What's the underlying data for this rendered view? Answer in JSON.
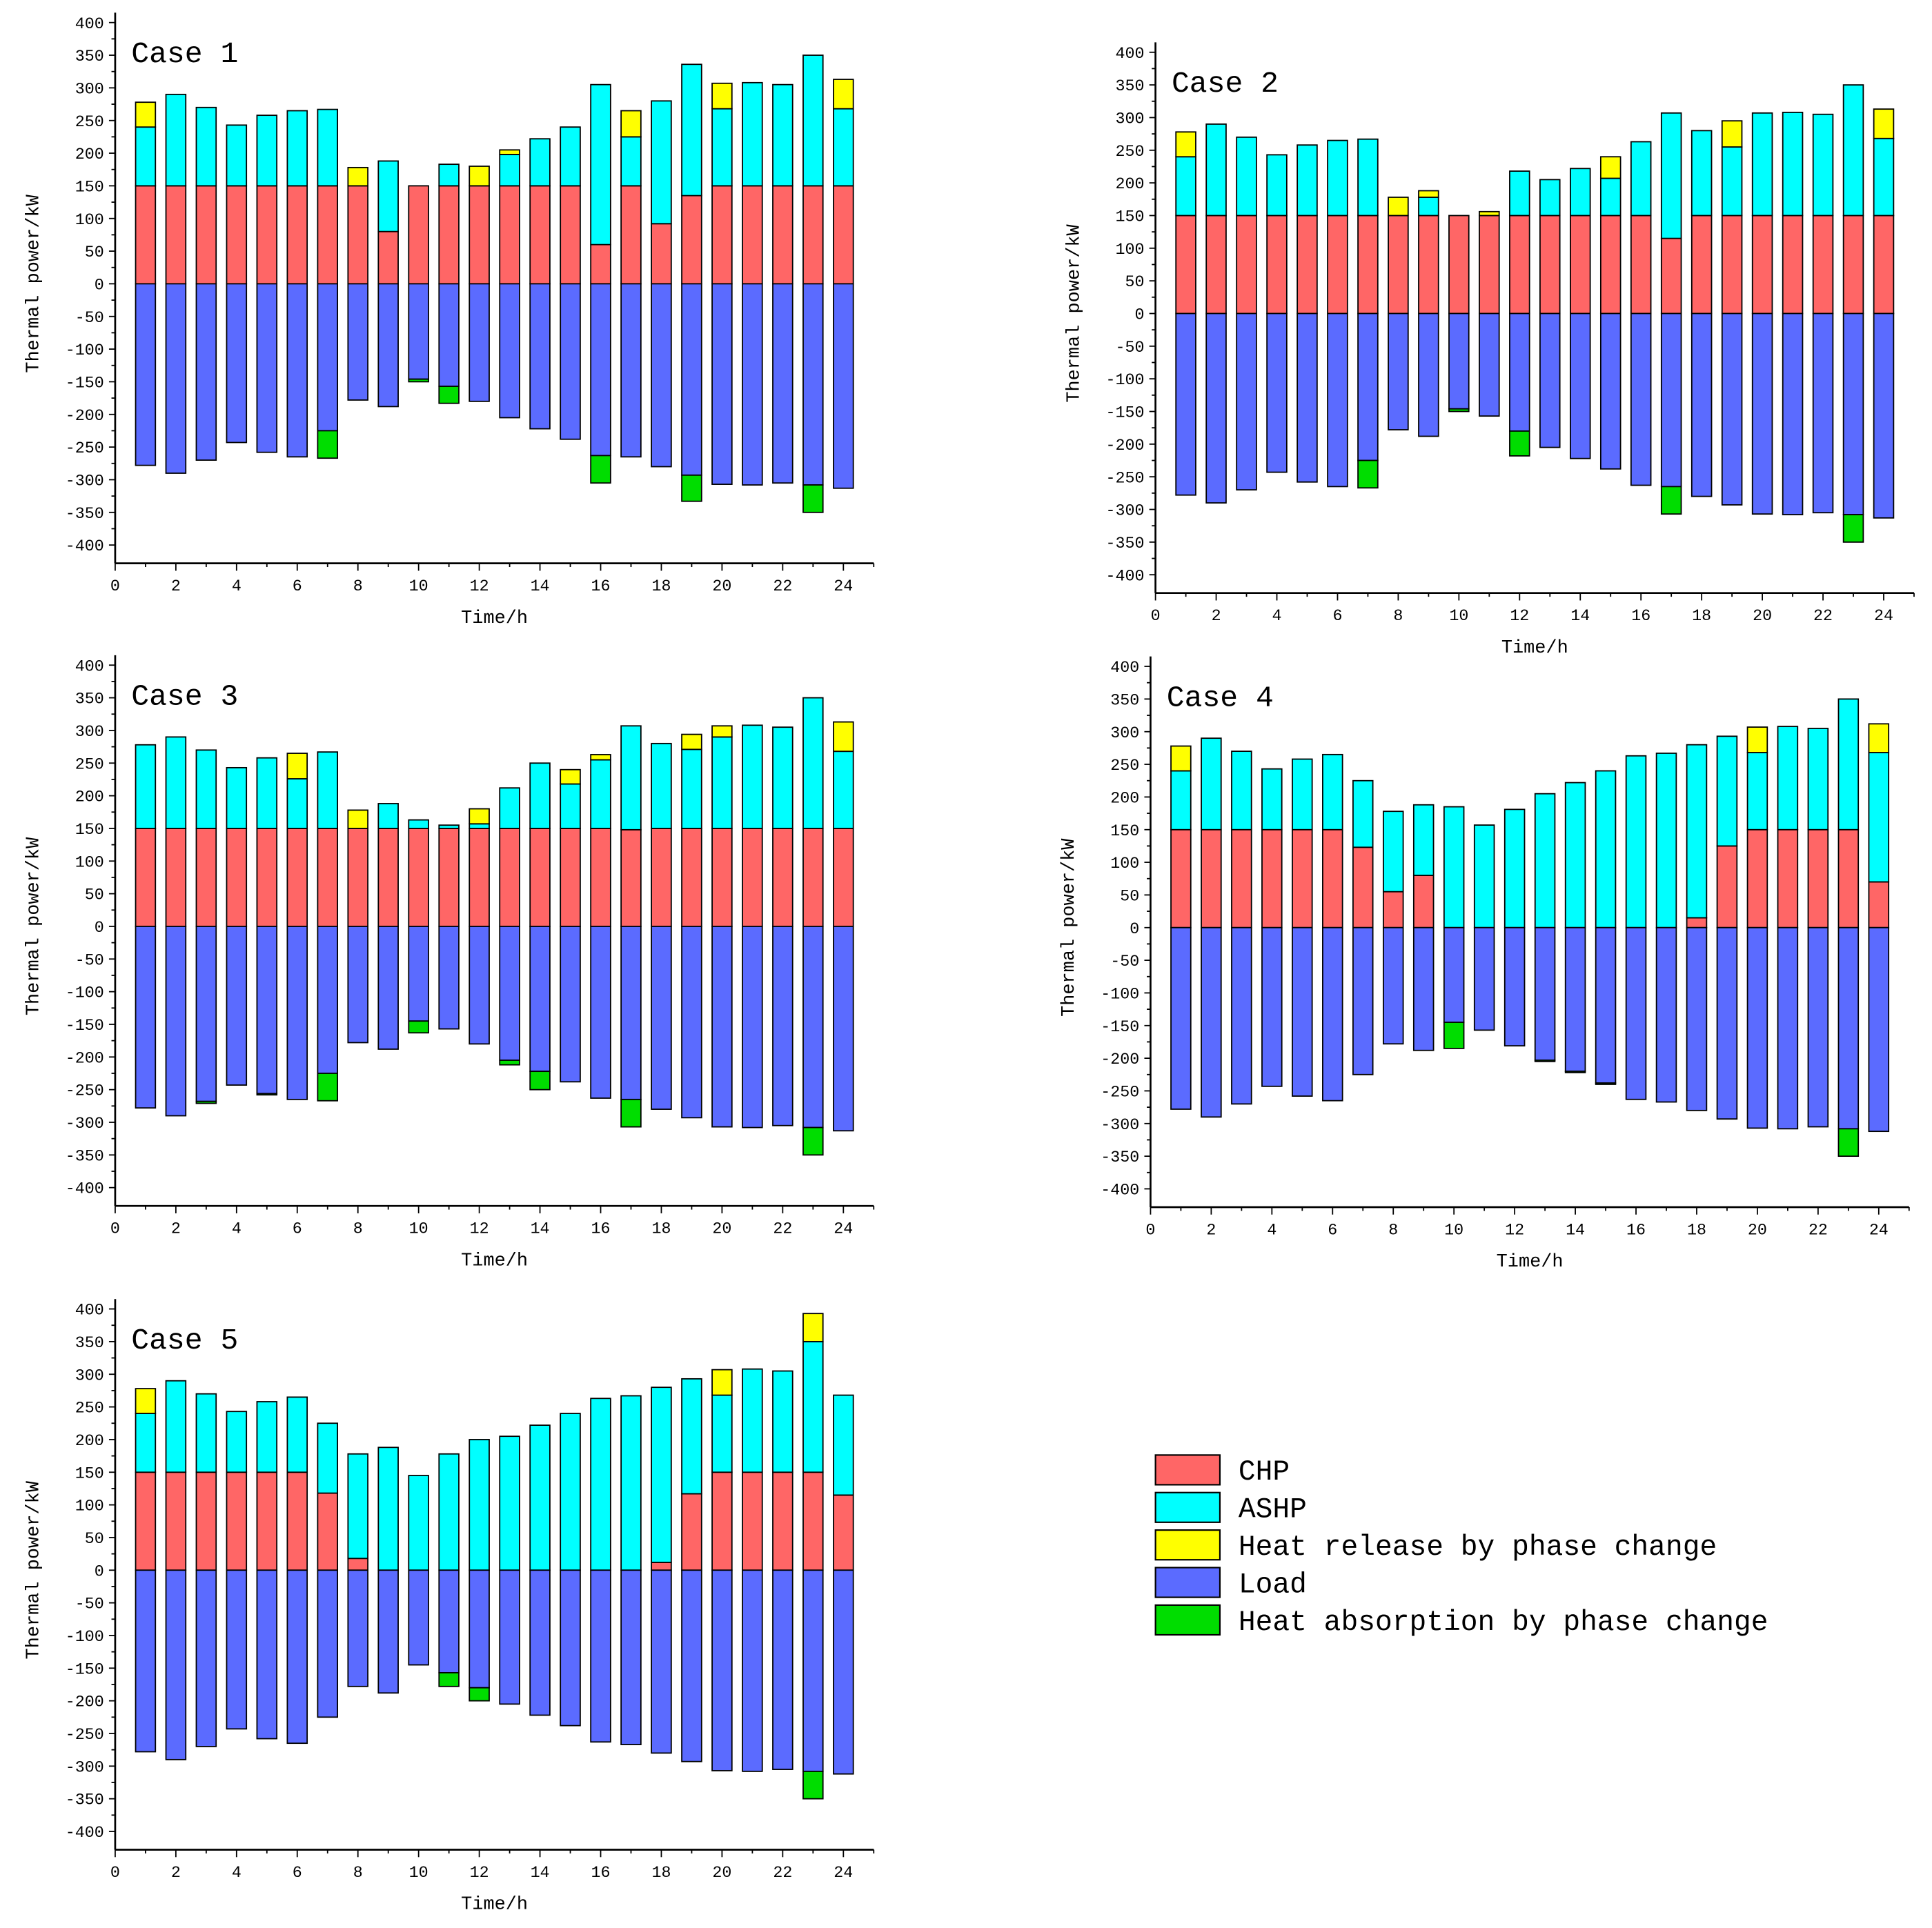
{
  "chart_data": {
    "type": "bar",
    "stacked": true,
    "xlabel": "Time/h",
    "ylabel": "Thermal power/kW",
    "ylim": [
      -400,
      400
    ],
    "yticks_step": 50,
    "xlim": [
      0,
      25
    ],
    "xticks": [
      0,
      2,
      4,
      6,
      8,
      10,
      12,
      14,
      16,
      18,
      20,
      22,
      24
    ],
    "hours": [
      1,
      2,
      3,
      4,
      5,
      6,
      7,
      8,
      9,
      10,
      11,
      12,
      13,
      14,
      15,
      16,
      17,
      18,
      19,
      20,
      21,
      22,
      23,
      24
    ],
    "legend_placement": "bottom-right",
    "series_meta": [
      {
        "key": "chp",
        "name": "CHP",
        "color": "#ff6666"
      },
      {
        "key": "ashp",
        "name": "ASHP",
        "color": "#00ffff"
      },
      {
        "key": "release",
        "name": "Heat release by phase change",
        "color": "#ffff00"
      },
      {
        "key": "load",
        "name": "Load",
        "color": "#5b6bff"
      },
      {
        "key": "absorb",
        "name": "Heat absorption by phase change",
        "color": "#00dd00"
      }
    ],
    "panels": [
      {
        "title": "Case 1",
        "chp": [
          150,
          150,
          150,
          150,
          150,
          150,
          150,
          150,
          80,
          150,
          150,
          150,
          150,
          150,
          150,
          60,
          150,
          92,
          135,
          150,
          150,
          150,
          150,
          150
        ],
        "ashp": [
          90,
          140,
          120,
          93,
          108,
          115,
          117,
          0,
          108,
          0,
          33,
          0,
          48,
          72,
          90,
          245,
          75,
          188,
          201,
          118,
          158,
          155,
          200,
          118
        ],
        "release": [
          38,
          0,
          0,
          0,
          0,
          0,
          0,
          28,
          0,
          0,
          0,
          30,
          7,
          0,
          0,
          0,
          40,
          0,
          0,
          39,
          0,
          0,
          0,
          45
        ],
        "load": [
          -278,
          -290,
          -270,
          -243,
          -258,
          -265,
          -225,
          -178,
          -188,
          -146,
          -157,
          -180,
          -205,
          -222,
          -238,
          -263,
          -265,
          -280,
          -293,
          -307,
          -308,
          -305,
          -308,
          -313
        ],
        "absorb": [
          0,
          0,
          0,
          0,
          0,
          0,
          -42,
          0,
          0,
          -4,
          -26,
          0,
          0,
          0,
          0,
          -42,
          0,
          0,
          -40,
          0,
          0,
          0,
          -42,
          0
        ]
      },
      {
        "title": "Case 2",
        "chp": [
          150,
          150,
          150,
          150,
          150,
          150,
          150,
          150,
          150,
          150,
          150,
          150,
          150,
          150,
          150,
          150,
          115,
          150,
          150,
          150,
          150,
          150,
          150,
          150
        ],
        "ashp": [
          90,
          140,
          120,
          93,
          108,
          115,
          117,
          0,
          28,
          0,
          0,
          68,
          55,
          72,
          57,
          113,
          192,
          130,
          105,
          157,
          158,
          155,
          200,
          118
        ],
        "release": [
          38,
          0,
          0,
          0,
          0,
          0,
          0,
          28,
          10,
          0,
          6,
          0,
          0,
          0,
          33,
          0,
          0,
          0,
          40,
          0,
          0,
          0,
          0,
          45
        ],
        "load": [
          -278,
          -290,
          -270,
          -243,
          -258,
          -265,
          -225,
          -178,
          -188,
          -146,
          -157,
          -180,
          -205,
          -222,
          -238,
          -263,
          -265,
          -280,
          -293,
          -307,
          -308,
          -305,
          -308,
          -313
        ],
        "absorb": [
          0,
          0,
          0,
          0,
          0,
          0,
          -42,
          0,
          0,
          -4,
          0,
          -38,
          0,
          0,
          0,
          0,
          -42,
          0,
          0,
          0,
          0,
          0,
          -42,
          0
        ]
      },
      {
        "title": "Case 3",
        "chp": [
          150,
          150,
          150,
          150,
          150,
          150,
          150,
          150,
          150,
          150,
          150,
          150,
          150,
          150,
          150,
          150,
          148,
          150,
          150,
          150,
          150,
          150,
          150,
          150
        ],
        "ashp": [
          128,
          140,
          120,
          93,
          108,
          76,
          117,
          0,
          38,
          13,
          5,
          7,
          62,
          100,
          68,
          105,
          159,
          130,
          121,
          140,
          158,
          155,
          200,
          118
        ],
        "release": [
          0,
          0,
          0,
          0,
          0,
          39,
          0,
          28,
          0,
          0,
          0,
          23,
          0,
          0,
          22,
          8,
          0,
          0,
          23,
          17,
          0,
          0,
          0,
          45
        ],
        "load": [
          -278,
          -290,
          -268,
          -243,
          -256,
          -265,
          -225,
          -178,
          -188,
          -145,
          -157,
          -180,
          -205,
          -222,
          -238,
          -263,
          -265,
          -280,
          -293,
          -307,
          -308,
          -305,
          -308,
          -313
        ],
        "absorb": [
          0,
          0,
          -3,
          0,
          -2,
          0,
          -42,
          0,
          0,
          -18,
          0,
          0,
          -7,
          -28,
          0,
          0,
          -42,
          0,
          0,
          0,
          0,
          0,
          -42,
          0
        ]
      },
      {
        "title": "Case 4",
        "chp": [
          150,
          150,
          150,
          150,
          150,
          150,
          123,
          55,
          80,
          0,
          0,
          0,
          0,
          0,
          0,
          0,
          0,
          15,
          125,
          150,
          150,
          150,
          150,
          70
        ],
        "ashp": [
          90,
          140,
          120,
          93,
          108,
          115,
          102,
          123,
          108,
          185,
          157,
          181,
          205,
          222,
          240,
          263,
          267,
          265,
          168,
          118,
          158,
          155,
          200,
          198
        ],
        "release": [
          38,
          0,
          0,
          0,
          0,
          0,
          0,
          0,
          0,
          0,
          0,
          0,
          0,
          0,
          0,
          0,
          0,
          0,
          0,
          39,
          0,
          0,
          0,
          44
        ],
        "load": [
          -278,
          -290,
          -270,
          -243,
          -258,
          -265,
          -225,
          -178,
          -188,
          -145,
          -157,
          -181,
          -203,
          -220,
          -238,
          -263,
          -267,
          -280,
          -293,
          -307,
          -308,
          -305,
          -308,
          -312
        ],
        "absorb": [
          0,
          0,
          0,
          0,
          0,
          0,
          0,
          0,
          0,
          -40,
          0,
          0,
          -2,
          -2,
          -2,
          0,
          0,
          0,
          0,
          0,
          0,
          0,
          -42,
          0
        ]
      },
      {
        "title": "Case 5",
        "chp": [
          150,
          150,
          150,
          150,
          150,
          150,
          118,
          18,
          0,
          0,
          0,
          0,
          0,
          0,
          0,
          0,
          0,
          12,
          117,
          150,
          150,
          150,
          150,
          115
        ],
        "ashp": [
          90,
          140,
          120,
          93,
          108,
          115,
          107,
          160,
          188,
          145,
          178,
          200,
          205,
          222,
          240,
          263,
          267,
          268,
          176,
          118,
          158,
          155,
          200,
          153
        ],
        "release": [
          38,
          0,
          0,
          0,
          0,
          0,
          0,
          0,
          0,
          0,
          0,
          0,
          0,
          0,
          0,
          0,
          0,
          0,
          0,
          39,
          0,
          0,
          43,
          0
        ],
        "load": [
          -278,
          -290,
          -270,
          -243,
          -258,
          -265,
          -225,
          -178,
          -188,
          -145,
          -157,
          -180,
          -205,
          -222,
          -238,
          -263,
          -267,
          -280,
          -293,
          -307,
          -308,
          -305,
          -308,
          -312
        ],
        "absorb": [
          0,
          0,
          0,
          0,
          0,
          0,
          0,
          0,
          0,
          0,
          -21,
          -20,
          0,
          0,
          0,
          0,
          0,
          0,
          0,
          0,
          0,
          0,
          -42,
          0
        ]
      }
    ]
  }
}
